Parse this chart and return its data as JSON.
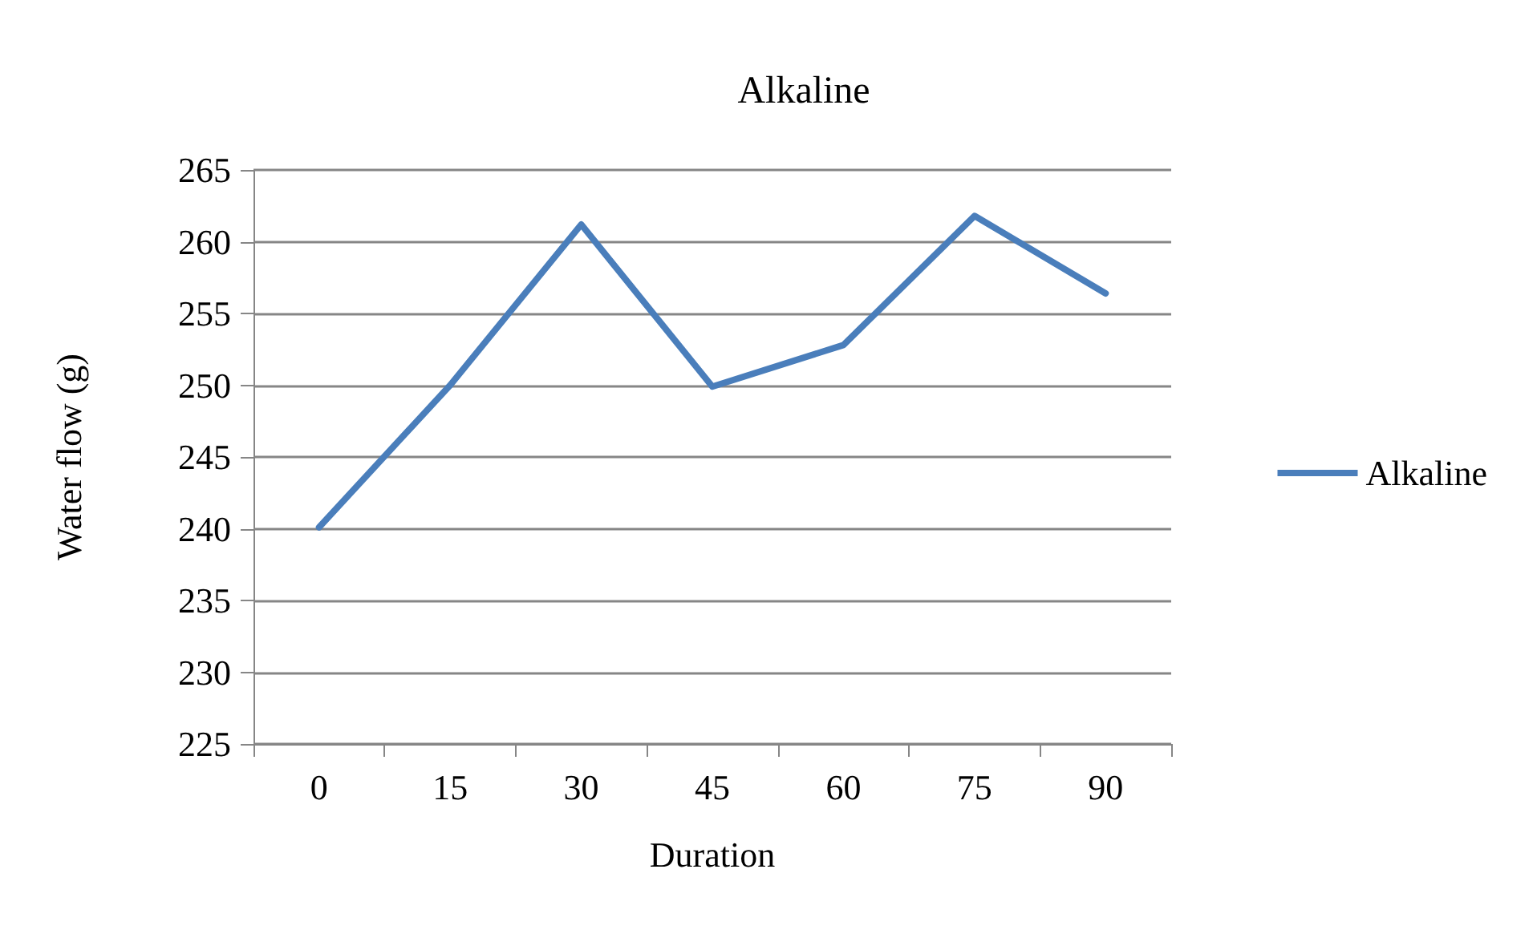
{
  "chart_data": {
    "type": "line",
    "title": "Alkaline",
    "xlabel": "Duration",
    "ylabel": "Water flow (g)",
    "categories": [
      "0",
      "15",
      "30",
      "45",
      "60",
      "75",
      "90"
    ],
    "series": [
      {
        "name": "Alkaline",
        "color": "#4a7ebb",
        "values": [
          240.1,
          250,
          261.2,
          249.9,
          252.8,
          261.8,
          256.4
        ]
      }
    ],
    "ylim": [
      225,
      265
    ],
    "yticks": [
      225,
      230,
      235,
      240,
      245,
      250,
      255,
      260,
      265
    ],
    "grid": "y",
    "legend": "right",
    "marker": "none",
    "line_style": "solid"
  }
}
